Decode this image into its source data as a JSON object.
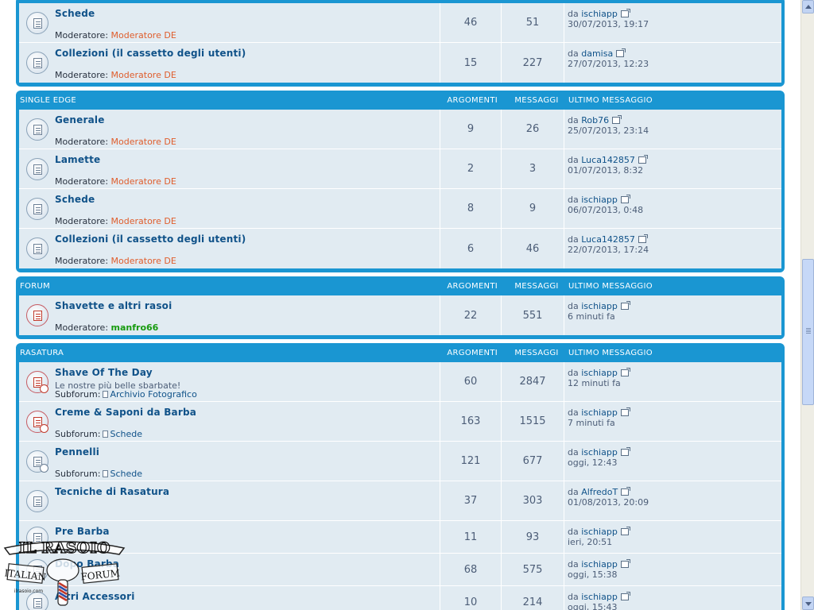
{
  "section_top": {
    "rows": [
      {
        "title": "Schede",
        "mod_label": "Moderatore:",
        "mod": "Moderatore DE",
        "topics": "46",
        "posts": "51",
        "by": "da",
        "user": "ischiapp",
        "date": "30/07/2013, 19:17"
      },
      {
        "title": "Collezioni (il cassetto degli utenti)",
        "mod_label": "Moderatore:",
        "mod": "Moderatore DE",
        "topics": "15",
        "posts": "227",
        "by": "da",
        "user": "damisa",
        "date": "27/07/2013, 12:23"
      }
    ]
  },
  "section_single_edge": {
    "title": "SINGLE EDGE",
    "col_topics": "ARGOMENTI",
    "col_posts": "MESSAGGI",
    "col_last": "ULTIMO MESSAGGIO",
    "rows": [
      {
        "title": "Generale",
        "mod_label": "Moderatore:",
        "mod": "Moderatore DE",
        "topics": "9",
        "posts": "26",
        "by": "da",
        "user": "Rob76",
        "date": "25/07/2013, 23:14"
      },
      {
        "title": "Lamette",
        "mod_label": "Moderatore:",
        "mod": "Moderatore DE",
        "topics": "2",
        "posts": "3",
        "by": "da",
        "user": "Luca142857",
        "date": "01/07/2013, 8:32"
      },
      {
        "title": "Schede",
        "mod_label": "Moderatore:",
        "mod": "Moderatore DE",
        "topics": "8",
        "posts": "9",
        "by": "da",
        "user": "ischiapp",
        "date": "06/07/2013, 0:48"
      },
      {
        "title": "Collezioni (il cassetto degli utenti)",
        "mod_label": "Moderatore:",
        "mod": "Moderatore DE",
        "topics": "6",
        "posts": "46",
        "by": "da",
        "user": "Luca142857",
        "date": "22/07/2013, 17:24"
      }
    ]
  },
  "section_forum": {
    "title": "FORUM",
    "col_topics": "ARGOMENTI",
    "col_posts": "MESSAGGI",
    "col_last": "ULTIMO MESSAGGIO",
    "rows": [
      {
        "title": "Shavette e altri rasoi",
        "mod_label": "Moderatore:",
        "mod": "manfro66",
        "topics": "22",
        "posts": "551",
        "by": "da",
        "user": "ischiapp",
        "date": "6 minuti fa"
      }
    ]
  },
  "section_rasatura": {
    "title": "RASATURA",
    "col_topics": "ARGOMENTI",
    "col_posts": "MESSAGGI",
    "col_last": "ULTIMO MESSAGGIO",
    "rows": [
      {
        "title": "Shave Of The Day",
        "desc": "Le nostre più belle sbarbate!",
        "sub_label": "Subforum:",
        "sub": "Archivio Fotografico",
        "topics": "60",
        "posts": "2847",
        "by": "da",
        "user": "ischiapp",
        "date": "12 minuti fa"
      },
      {
        "title": "Creme & Saponi da Barba",
        "sub_label": "Subforum:",
        "sub": "Schede",
        "topics": "163",
        "posts": "1515",
        "by": "da",
        "user": "ischiapp",
        "date": "7 minuti fa"
      },
      {
        "title": "Pennelli",
        "sub_label": "Subforum:",
        "sub": "Schede",
        "topics": "121",
        "posts": "677",
        "by": "da",
        "user": "ischiapp",
        "date": "oggi, 12:43"
      },
      {
        "title": "Tecniche di Rasatura",
        "topics": "37",
        "posts": "303",
        "by": "da",
        "user": "AlfredoT",
        "date": "01/08/2013, 20:09"
      },
      {
        "title": "Pre Barba",
        "topics": "11",
        "posts": "93",
        "by": "da",
        "user": "ischiapp",
        "date": "ieri, 20:51"
      },
      {
        "title": "Dopo Barba",
        "topics": "68",
        "posts": "575",
        "by": "da",
        "user": "ischiapp",
        "date": "oggi, 15:38"
      },
      {
        "title": "Altri Accessori",
        "topics": "10",
        "posts": "214",
        "by": "da",
        "user": "ischiapp",
        "date": "oggi, 15:43"
      }
    ]
  },
  "logo": {
    "line1": "IL RASOIO",
    "left": "ITALIAN",
    "right": "FORUM",
    "small": "ilrasoio.com"
  },
  "colors": {
    "header_blue": "#1a96d2",
    "row_bg": "#e1ebf2",
    "link": "#105289",
    "moderator": "#e05d2c",
    "admin_green": "#179b0f",
    "unread_icon": "#c0392b"
  }
}
